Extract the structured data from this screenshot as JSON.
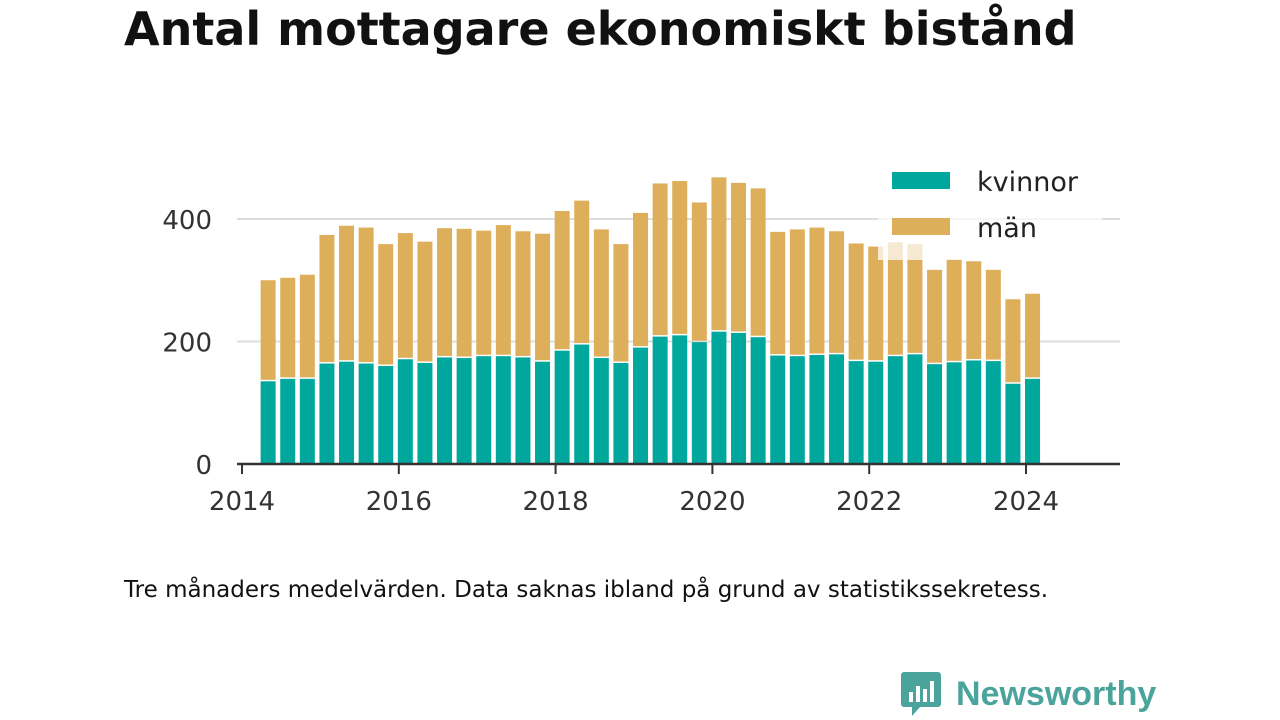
{
  "title": "Antal mottagare ekonomiskt bistånd",
  "caption": "Tre månaders medelvärden. Data saknas ibland på grund av statistikssekretess.",
  "brand": "Newsworthy",
  "colors": {
    "kvinnor": "#00a79d",
    "man": "#ddaf5b",
    "grid": "#dddddd",
    "axis": "#333333",
    "brand": "#4aa49c"
  },
  "chart_data": {
    "type": "bar",
    "stacked": true,
    "x_type": "date",
    "x": [
      "2014-05",
      "2014-08",
      "2014-11",
      "2015-02",
      "2015-05",
      "2015-08",
      "2015-11",
      "2016-02",
      "2016-05",
      "2016-08",
      "2016-11",
      "2017-02",
      "2017-05",
      "2017-08",
      "2017-11",
      "2018-02",
      "2018-05",
      "2018-08",
      "2018-11",
      "2019-02",
      "2019-05",
      "2019-08",
      "2019-11",
      "2020-02",
      "2020-05",
      "2020-08",
      "2020-11",
      "2021-02",
      "2021-05",
      "2021-08",
      "2021-11",
      "2022-02",
      "2022-05",
      "2022-08",
      "2022-11",
      "2023-02",
      "2023-05",
      "2023-08",
      "2023-11",
      "2024-02"
    ],
    "series": [
      {
        "name": "kvinnor",
        "values": [
          135,
          139,
          139,
          164,
          167,
          164,
          160,
          171,
          165,
          174,
          173,
          176,
          176,
          174,
          167,
          185,
          195,
          173,
          165,
          190,
          208,
          210,
          199,
          216,
          214,
          207,
          177,
          176,
          178,
          179,
          168,
          167,
          176,
          179,
          163,
          166,
          169,
          168,
          131,
          139
        ]
      },
      {
        "name": "män",
        "values": [
          165,
          165,
          170,
          210,
          222,
          222,
          199,
          206,
          198,
          211,
          211,
          205,
          214,
          206,
          209,
          228,
          235,
          210,
          194,
          220,
          250,
          252,
          228,
          252,
          245,
          243,
          202,
          207,
          208,
          201,
          192,
          188,
          186,
          180,
          154,
          168,
          162,
          149,
          138,
          139
        ]
      }
    ],
    "xticks": [
      "2014",
      "2016",
      "2018",
      "2020",
      "2022",
      "2024"
    ],
    "yticks": [
      "0",
      "200",
      "400"
    ],
    "ylim": [
      0,
      470
    ],
    "xlim": [
      "2013-11",
      "2025-04"
    ],
    "grid": true,
    "legend": {
      "position": "top-right",
      "entries": [
        "kvinnor",
        "män"
      ]
    }
  }
}
